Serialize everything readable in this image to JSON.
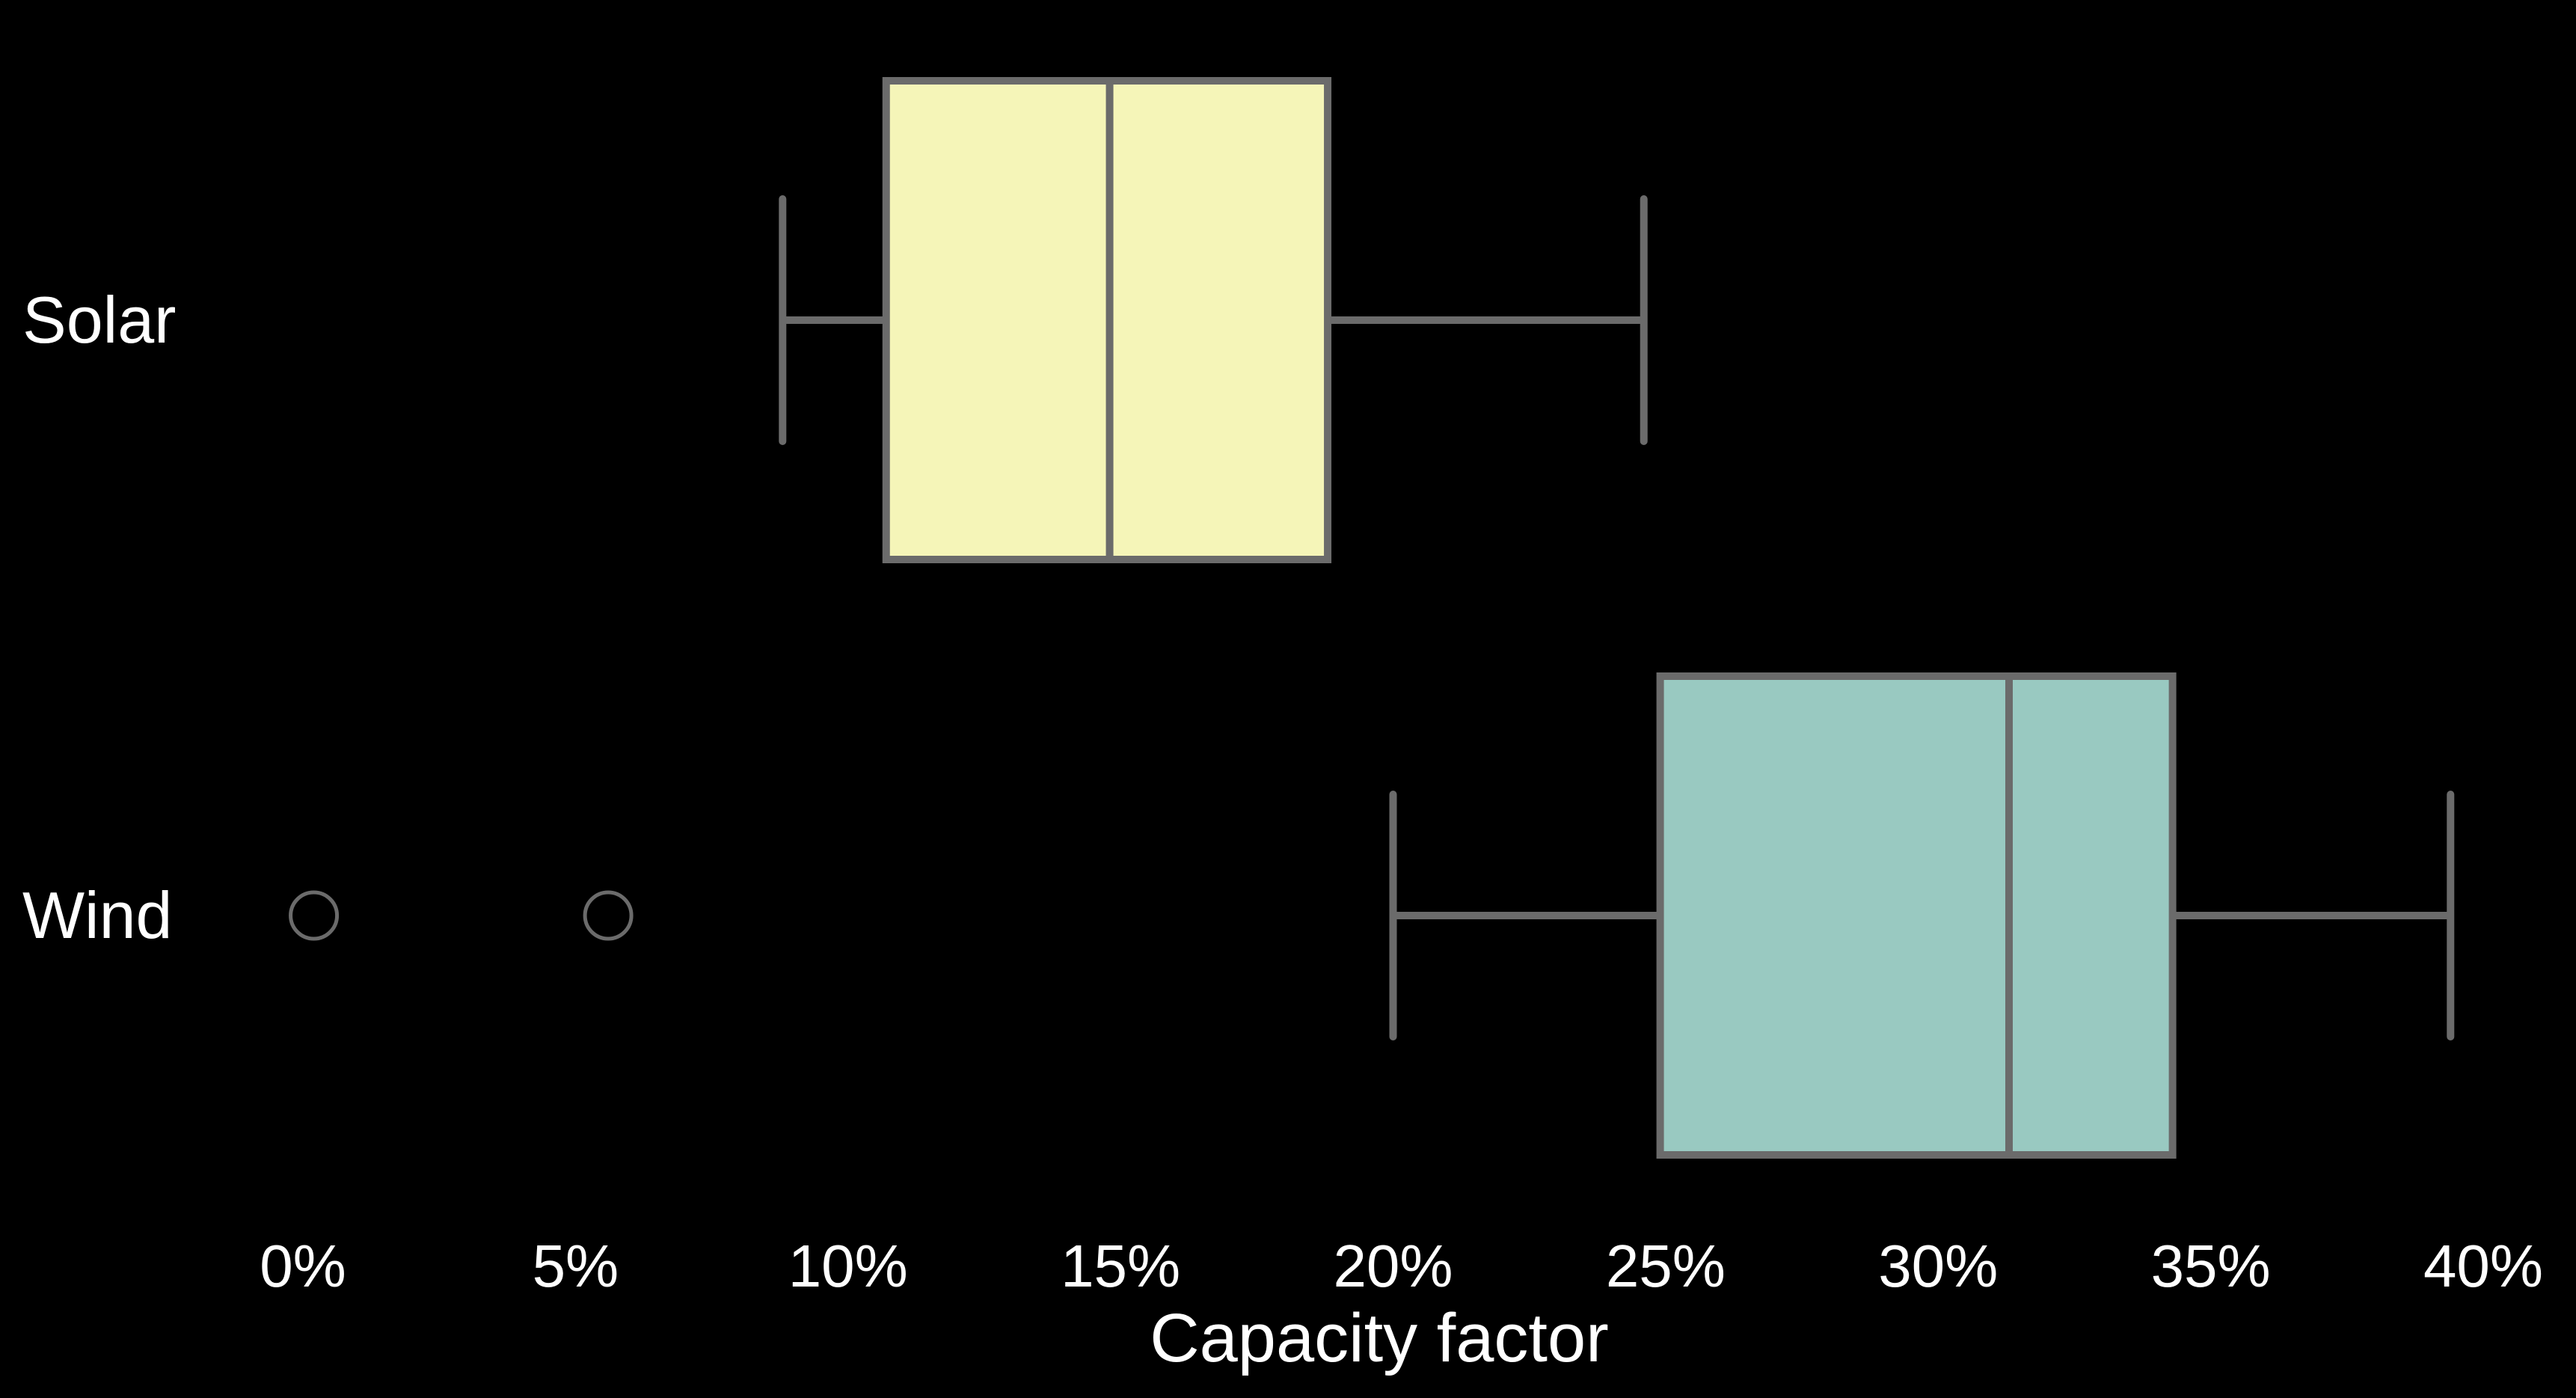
{
  "chart_data": {
    "type": "boxplot",
    "orientation": "horizontal",
    "xlabel": "Capacity factor",
    "xlim": [
      0,
      40
    ],
    "xticks": [
      0,
      5,
      10,
      15,
      20,
      25,
      30,
      35,
      40
    ],
    "xtick_labels": [
      "0%",
      "5%",
      "10%",
      "15%",
      "20%",
      "25%",
      "30%",
      "35%",
      "40%"
    ],
    "categories": [
      "Solar",
      "Wind"
    ],
    "series": [
      {
        "category": "Solar",
        "whisker_low": 8.8,
        "q1": 10.7,
        "median": 14.8,
        "q3": 18.8,
        "whisker_high": 24.6,
        "outliers": [],
        "color": "#f5f5b8"
      },
      {
        "category": "Wind",
        "whisker_low": 20.0,
        "q1": 24.9,
        "median": 31.3,
        "q3": 34.3,
        "whisker_high": 39.4,
        "outliers": [
          0.2,
          5.6
        ],
        "color": "#99c9c1"
      }
    ],
    "grid": false,
    "legend": "none"
  },
  "colors": {
    "background": "#000000",
    "stroke": "#6b6b6b",
    "text": "#ffffff"
  }
}
